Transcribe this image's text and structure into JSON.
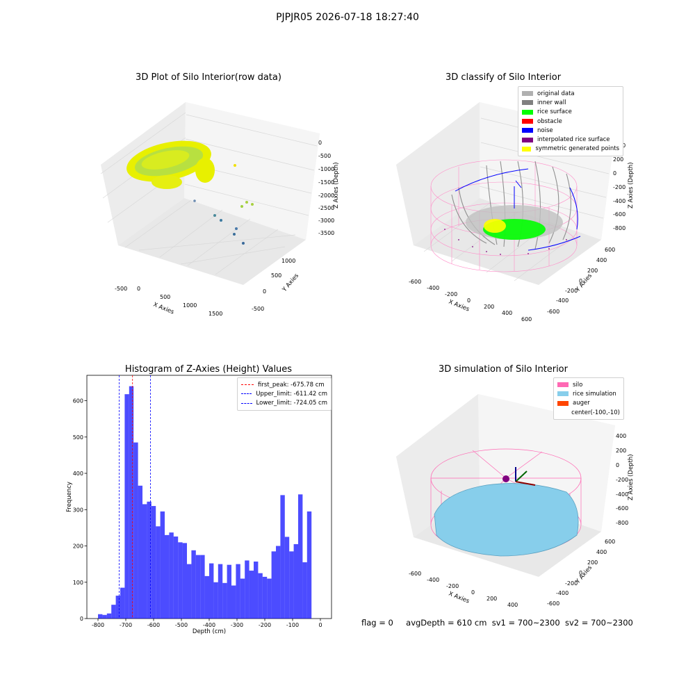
{
  "figure": {
    "title": "PJPJR05 2026-07-18 18:27:40",
    "footer": {
      "flag": "flag = 0",
      "avg_depth": "avgDepth = 610 cm",
      "sv1": "sv1 = 700~2300",
      "sv2": "sv2 = 700~2300"
    }
  },
  "panels": {
    "raw": {
      "title": "3D Plot of Silo Interior(row data)",
      "xlabel": "X Axies",
      "ylabel": "Y Axies",
      "zlabel": "Z Axies (Depth)",
      "xticks": [
        "-500",
        "0",
        "500",
        "1000",
        "1500"
      ],
      "yticks": [
        "1000",
        "500",
        "0",
        "-500"
      ],
      "zticks": [
        "0",
        "-500",
        "-1000",
        "-1500",
        "-2000",
        "-2500",
        "-3000",
        "-3500"
      ]
    },
    "classify": {
      "title": "3D classify of Silo Interior",
      "xlabel": "X Axies",
      "ylabel": "Y Axies",
      "zlabel": "Z Axies (Depth)",
      "xticks": [
        "-600",
        "-400",
        "-200",
        "0",
        "200",
        "400",
        "600"
      ],
      "yticks": [
        "600",
        "400",
        "200",
        "0",
        "-200",
        "-400",
        "-600"
      ],
      "zticks": [
        "200",
        "0",
        "-200",
        "-400",
        "-600",
        "-800"
      ],
      "zticks_partial": "00",
      "legend": [
        {
          "label": "original data",
          "color": "#b0b0b0"
        },
        {
          "label": "inner wall",
          "color": "#808080"
        },
        {
          "label": "rice surface",
          "color": "#00ff00"
        },
        {
          "label": "obstacle",
          "color": "#ff0000"
        },
        {
          "label": "noise",
          "color": "#0000ff"
        },
        {
          "label": "interpolated rice surface",
          "color": "#800080"
        },
        {
          "label": "symmetric generated points",
          "color": "#ffff00"
        }
      ]
    },
    "histogram": {
      "title": "Histogram of Z-Axies (Height) Values",
      "xlabel": "Depth (cm)",
      "ylabel": "Frequency",
      "legend": [
        {
          "label": "first_peak: -675.78 cm",
          "color": "#ff0000"
        },
        {
          "label": "Upper_limit: -611.42 cm",
          "color": "#0000ff"
        },
        {
          "label": "Lower_limit: -724.05 cm",
          "color": "#0000ff"
        }
      ]
    },
    "simulation": {
      "title": "3D simulation of Silo Interior",
      "xlabel": "X Axies",
      "ylabel": "Y Axies",
      "zlabel": "Z Axies (Depth)",
      "xticks": [
        "-600",
        "-400",
        "-200",
        "0",
        "200",
        "400"
      ],
      "yticks": [
        "600",
        "400",
        "200",
        "0",
        "-200",
        "-400",
        "-600"
      ],
      "zticks": [
        "400",
        "200",
        "0",
        "-200",
        "-400",
        "-600",
        "-800"
      ],
      "legend": [
        {
          "label": "silo",
          "color": "#ff69b4"
        },
        {
          "label": "rice simulation",
          "color": "#87ceeb"
        },
        {
          "label": "auger",
          "color": "#ff4500"
        },
        {
          "label": "center(-100,-10)",
          "color": ""
        }
      ]
    }
  },
  "chart_data": {
    "type": "bar",
    "title": "Histogram of Z-Axies (Height) Values",
    "xlabel": "Depth (cm)",
    "ylabel": "Frequency",
    "xlim": [
      -840,
      40
    ],
    "ylim": [
      0,
      670
    ],
    "xticks": [
      -800,
      -700,
      -600,
      -500,
      -400,
      -300,
      -200,
      -100,
      0
    ],
    "yticks": [
      0,
      100,
      200,
      300,
      400,
      500,
      600
    ],
    "bin_width": 16,
    "bin_start": -800,
    "values": [
      12,
      10,
      14,
      38,
      63,
      85,
      618,
      640,
      485,
      366,
      315,
      322,
      310,
      254,
      295,
      230,
      237,
      226,
      210,
      208,
      150,
      188,
      175,
      175,
      117,
      152,
      100,
      150,
      98,
      148,
      91,
      150,
      110,
      160,
      132,
      157,
      125,
      115,
      110,
      185,
      200,
      340,
      225,
      185,
      205,
      342,
      155,
      295
    ],
    "color": "#0000ff",
    "lines": [
      {
        "name": "first_peak: -675.78 cm",
        "x": -675.78,
        "color": "#ff0000"
      },
      {
        "name": "Upper_limit: -611.42 cm",
        "x": -611.42,
        "color": "#0000ff"
      },
      {
        "name": "Lower_limit: -724.05 cm",
        "x": -724.05,
        "color": "#0000ff"
      }
    ],
    "grid": false,
    "legend": "top-right"
  }
}
